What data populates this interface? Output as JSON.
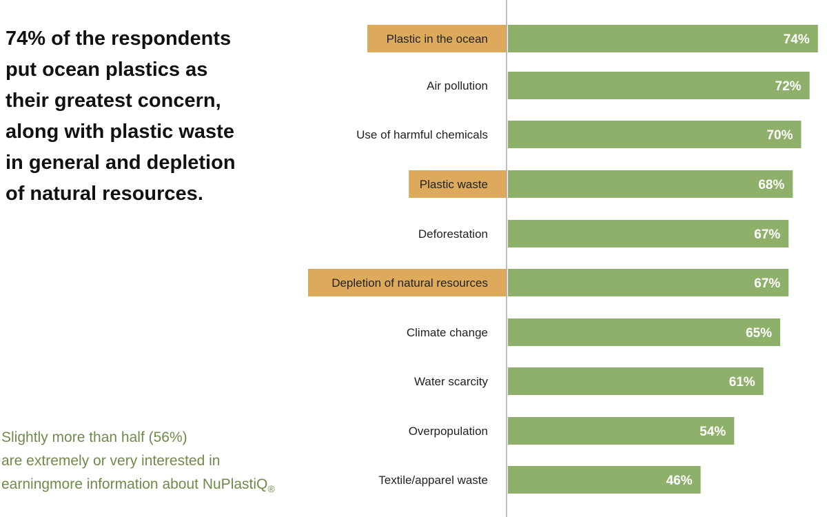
{
  "headline": "74% of the respondents\nput ocean plastics as\ntheir greatest concern,\nalong with plastic waste\nin general and depletion\nof natural resources.",
  "note": {
    "text": "Slightly more than half (56%)\nare extremely or very interested in\nearningmore information about NuPlastiQ",
    "mark": "®"
  },
  "colors": {
    "bar": "#8fb06a",
    "highlight": "#dcaa5a",
    "axis": "#aaaaaa",
    "note": "#6f8a4a"
  },
  "chart_data": {
    "type": "bar",
    "orientation": "horizontal",
    "title": "",
    "xlabel": "",
    "ylabel": "",
    "xlim": [
      0,
      76
    ],
    "value_suffix": "%",
    "categories": [
      "Plastic in the ocean",
      "Air pollution",
      "Use of harmful chemicals",
      "Plastic waste",
      "Deforestation",
      "Depletion of natural resources",
      "Climate change",
      "Water scarcity",
      "Overpopulation",
      "Textile/apparel waste"
    ],
    "values": [
      74,
      72,
      70,
      68,
      67,
      67,
      65,
      61,
      54,
      46
    ],
    "highlighted": [
      "Plastic in the ocean",
      "Plastic waste",
      "Depletion of natural resources"
    ]
  }
}
